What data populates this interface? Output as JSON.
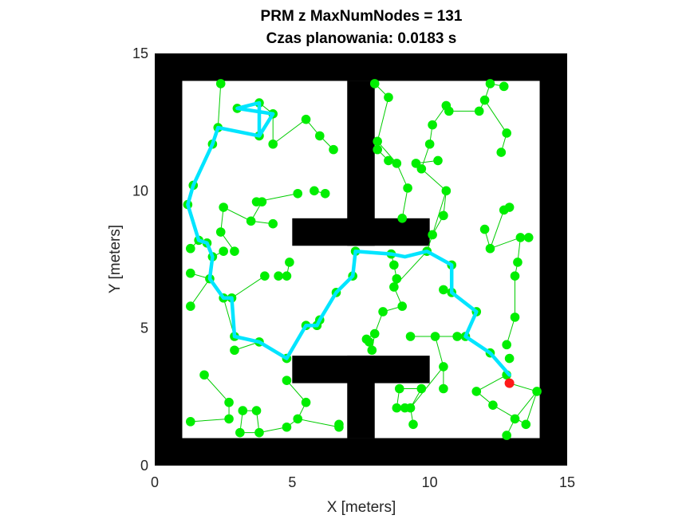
{
  "chart_data": {
    "type": "scatter",
    "title": "PRM z MaxNumNodes = 131",
    "subtitle": "Czas planowania: 0.0183 s",
    "xlabel": "X [meters]",
    "ylabel": "Y [meters]",
    "xlim": [
      0,
      15
    ],
    "ylim": [
      0,
      15
    ],
    "xticks": [
      "0",
      "5",
      "10",
      "15"
    ],
    "yticks": [
      "0",
      "5",
      "10",
      "15"
    ],
    "grid": false,
    "colors": {
      "obstacle": "#000000",
      "free": "#ffffff",
      "node": "#00ee00",
      "edge": "#00cc00",
      "path": "#00e5ff",
      "goal": "#ff1a1a"
    },
    "obstacles": [
      {
        "x": 0,
        "y": 0,
        "w": 15,
        "h": 1
      },
      {
        "x": 0,
        "y": 14,
        "w": 15,
        "h": 1
      },
      {
        "x": 0,
        "y": 0,
        "w": 1,
        "h": 15
      },
      {
        "x": 14,
        "y": 0,
        "w": 1,
        "h": 15
      },
      {
        "x": 7,
        "y": 1,
        "w": 1,
        "h": 3
      },
      {
        "x": 7,
        "y": 8,
        "w": 1,
        "h": 6
      },
      {
        "x": 5,
        "y": 8,
        "w": 5,
        "h": 1
      },
      {
        "x": 5,
        "y": 3,
        "w": 5,
        "h": 1
      }
    ],
    "nodes": [
      [
        2.4,
        13.9
      ],
      [
        3.0,
        13.0
      ],
      [
        3.8,
        13.2
      ],
      [
        4.3,
        12.8
      ],
      [
        3.8,
        12.0
      ],
      [
        4.3,
        11.7
      ],
      [
        2.3,
        12.3
      ],
      [
        2.1,
        11.7
      ],
      [
        5.5,
        12.6
      ],
      [
        6.0,
        12.0
      ],
      [
        6.5,
        11.5
      ],
      [
        1.4,
        10.2
      ],
      [
        1.2,
        9.5
      ],
      [
        2.5,
        9.4
      ],
      [
        3.7,
        9.6
      ],
      [
        3.9,
        9.6
      ],
      [
        5.2,
        9.9
      ],
      [
        5.8,
        10.0
      ],
      [
        6.2,
        9.9
      ],
      [
        3.5,
        8.9
      ],
      [
        4.3,
        8.8
      ],
      [
        2.4,
        8.5
      ],
      [
        1.6,
        8.2
      ],
      [
        1.9,
        8.1
      ],
      [
        1.3,
        7.9
      ],
      [
        2.5,
        7.8
      ],
      [
        2.9,
        7.8
      ],
      [
        2.1,
        7.6
      ],
      [
        4.0,
        6.9
      ],
      [
        4.5,
        6.9
      ],
      [
        4.8,
        6.9
      ],
      [
        4.9,
        7.4
      ],
      [
        1.3,
        7.0
      ],
      [
        2.0,
        6.8
      ],
      [
        2.5,
        6.1
      ],
      [
        2.8,
        6.1
      ],
      [
        1.3,
        5.8
      ],
      [
        2.9,
        4.7
      ],
      [
        3.8,
        4.5
      ],
      [
        2.9,
        4.2
      ],
      [
        4.8,
        3.9
      ],
      [
        5.5,
        5.1
      ],
      [
        5.9,
        5.1
      ],
      [
        6.0,
        5.3
      ],
      [
        6.6,
        6.3
      ],
      [
        7.2,
        6.9
      ],
      [
        7.3,
        7.8
      ],
      [
        8.6,
        7.7
      ],
      [
        8.7,
        7.3
      ],
      [
        8.8,
        6.8
      ],
      [
        8.7,
        6.5
      ],
      [
        9.0,
        5.8
      ],
      [
        9.9,
        7.8
      ],
      [
        10.1,
        8.4
      ],
      [
        10.8,
        7.3
      ],
      [
        10.5,
        6.4
      ],
      [
        10.8,
        6.3
      ],
      [
        11.7,
        5.6
      ],
      [
        11.3,
        4.7
      ],
      [
        12.2,
        4.1
      ],
      [
        12.9,
        3.9
      ],
      [
        12.8,
        3.3
      ],
      [
        12.9,
        3.0
      ],
      [
        8.0,
        13.9
      ],
      [
        8.5,
        13.4
      ],
      [
        8.1,
        11.8
      ],
      [
        8.1,
        11.5
      ],
      [
        8.5,
        11.1
      ],
      [
        8.8,
        11.0
      ],
      [
        9.2,
        10.1
      ],
      [
        9.5,
        11.0
      ],
      [
        10.1,
        12.4
      ],
      [
        10.0,
        11.7
      ],
      [
        9.7,
        10.8
      ],
      [
        10.3,
        11.1
      ],
      [
        10.6,
        10.0
      ],
      [
        10.5,
        9.1
      ],
      [
        9.0,
        9.0
      ],
      [
        10.6,
        13.1
      ],
      [
        10.7,
        12.9
      ],
      [
        11.8,
        12.9
      ],
      [
        12.0,
        13.3
      ],
      [
        12.2,
        13.9
      ],
      [
        12.7,
        13.8
      ],
      [
        12.8,
        12.1
      ],
      [
        12.6,
        11.4
      ],
      [
        12.7,
        9.3
      ],
      [
        12.9,
        9.4
      ],
      [
        12.0,
        8.6
      ],
      [
        12.2,
        7.9
      ],
      [
        13.3,
        8.3
      ],
      [
        13.6,
        8.3
      ],
      [
        13.2,
        7.4
      ],
      [
        13.1,
        6.9
      ],
      [
        13.1,
        5.4
      ],
      [
        12.8,
        4.4
      ],
      [
        7.7,
        4.6
      ],
      [
        7.9,
        4.2
      ],
      [
        7.8,
        4.5
      ],
      [
        8.0,
        4.8
      ],
      [
        8.3,
        5.6
      ],
      [
        9.3,
        4.7
      ],
      [
        10.2,
        4.7
      ],
      [
        11.0,
        4.7
      ],
      [
        8.9,
        2.8
      ],
      [
        9.3,
        2.1
      ],
      [
        9.7,
        2.8
      ],
      [
        9.4,
        1.5
      ],
      [
        10.5,
        3.6
      ],
      [
        10.5,
        2.8
      ],
      [
        8.8,
        2.1
      ],
      [
        9.1,
        2.1
      ],
      [
        11.7,
        2.7
      ],
      [
        12.3,
        2.2
      ],
      [
        12.8,
        1.1
      ],
      [
        13.1,
        1.7
      ],
      [
        13.9,
        2.7
      ],
      [
        13.5,
        1.5
      ],
      [
        1.8,
        3.3
      ],
      [
        2.7,
        2.3
      ],
      [
        2.7,
        1.7
      ],
      [
        3.2,
        2.0
      ],
      [
        3.7,
        2.0
      ],
      [
        1.3,
        1.6
      ],
      [
        3.1,
        1.2
      ],
      [
        3.8,
        1.2
      ],
      [
        4.8,
        1.4
      ],
      [
        5.2,
        1.7
      ],
      [
        4.8,
        3.1
      ],
      [
        6.7,
        1.4
      ],
      [
        6.7,
        1.5
      ],
      [
        5.5,
        2.3
      ]
    ],
    "edges": [
      [
        2.4,
        13.9,
        2.3,
        12.3
      ],
      [
        3.0,
        13.0,
        3.8,
        13.2
      ],
      [
        3.8,
        13.2,
        4.3,
        12.8
      ],
      [
        4.3,
        12.8,
        3.8,
        12.0
      ],
      [
        4.3,
        12.8,
        4.3,
        11.7
      ],
      [
        2.3,
        12.3,
        3.8,
        12.0
      ],
      [
        5.5,
        12.6,
        6.0,
        12.0
      ],
      [
        6.0,
        12.0,
        6.5,
        11.5
      ],
      [
        5.5,
        12.6,
        4.3,
        11.7
      ],
      [
        2.1,
        11.7,
        1.4,
        10.2
      ],
      [
        1.2,
        9.5,
        1.6,
        8.2
      ],
      [
        2.5,
        9.4,
        3.5,
        8.9
      ],
      [
        3.7,
        9.6,
        5.2,
        9.9
      ],
      [
        3.9,
        9.6,
        3.5,
        8.9
      ],
      [
        5.8,
        10.0,
        6.2,
        9.9
      ],
      [
        3.5,
        8.9,
        4.3,
        8.8
      ],
      [
        2.4,
        8.5,
        2.9,
        7.8
      ],
      [
        2.4,
        8.5,
        2.5,
        9.4
      ],
      [
        1.3,
        7.9,
        1.6,
        8.2
      ],
      [
        2.5,
        7.8,
        2.1,
        7.6
      ],
      [
        2.0,
        6.8,
        1.3,
        7.0
      ],
      [
        2.0,
        6.8,
        1.3,
        5.8
      ],
      [
        4.0,
        6.9,
        2.8,
        6.1
      ],
      [
        4.8,
        6.9,
        4.9,
        7.4
      ],
      [
        2.8,
        6.1,
        2.9,
        4.7
      ],
      [
        2.9,
        4.2,
        3.8,
        4.5
      ],
      [
        2.5,
        6.1,
        2.9,
        4.7
      ],
      [
        2.0,
        6.8,
        2.1,
        7.6
      ],
      [
        7.3,
        7.8,
        8.6,
        7.7
      ],
      [
        8.7,
        7.3,
        8.8,
        6.8
      ],
      [
        8.8,
        6.8,
        8.7,
        6.5
      ],
      [
        8.7,
        6.5,
        9.0,
        5.8
      ],
      [
        8.6,
        7.7,
        8.7,
        7.3
      ],
      [
        9.0,
        5.8,
        8.3,
        5.6
      ],
      [
        8.3,
        5.6,
        8.0,
        4.8
      ],
      [
        8.0,
        4.8,
        7.7,
        4.6
      ],
      [
        8.0,
        4.8,
        7.9,
        4.2
      ],
      [
        10.1,
        8.4,
        9.9,
        7.8
      ],
      [
        10.1,
        8.4,
        10.6,
        10.0
      ],
      [
        10.5,
        6.4,
        10.8,
        6.3
      ],
      [
        8.7,
        6.5,
        9.9,
        7.8
      ],
      [
        9.3,
        4.7,
        10.2,
        4.7
      ],
      [
        10.2,
        4.7,
        11.3,
        4.7
      ],
      [
        10.2,
        4.7,
        10.5,
        3.6
      ],
      [
        8.0,
        13.9,
        8.5,
        13.4
      ],
      [
        8.5,
        13.4,
        8.1,
        11.8
      ],
      [
        8.1,
        11.5,
        8.5,
        11.1
      ],
      [
        8.5,
        11.1,
        8.8,
        11.0
      ],
      [
        8.8,
        11.0,
        9.2,
        10.1
      ],
      [
        9.2,
        10.1,
        9.0,
        9.0
      ],
      [
        9.5,
        11.0,
        10.3,
        11.1
      ],
      [
        10.1,
        12.4,
        10.0,
        11.7
      ],
      [
        10.0,
        11.7,
        9.7,
        10.8
      ],
      [
        10.1,
        12.4,
        10.6,
        13.1
      ],
      [
        10.6,
        13.1,
        10.7,
        12.9
      ],
      [
        10.7,
        12.9,
        11.8,
        12.9
      ],
      [
        11.8,
        12.9,
        12.0,
        13.3
      ],
      [
        12.0,
        13.3,
        12.2,
        13.9
      ],
      [
        12.2,
        13.9,
        12.7,
        13.8
      ],
      [
        12.0,
        13.3,
        12.8,
        12.1
      ],
      [
        12.8,
        12.1,
        12.6,
        11.4
      ],
      [
        9.7,
        10.8,
        10.6,
        10.0
      ],
      [
        10.6,
        10.0,
        10.5,
        9.1
      ],
      [
        10.5,
        9.1,
        10.1,
        8.4
      ],
      [
        8.1,
        11.8,
        8.8,
        11.0
      ],
      [
        12.7,
        9.3,
        12.2,
        7.9
      ],
      [
        12.9,
        9.4,
        12.7,
        9.3
      ],
      [
        12.0,
        8.6,
        12.2,
        7.9
      ],
      [
        13.3,
        8.3,
        13.6,
        8.3
      ],
      [
        13.3,
        8.3,
        13.2,
        7.4
      ],
      [
        13.2,
        7.4,
        13.1,
        6.9
      ],
      [
        13.1,
        6.9,
        13.1,
        5.4
      ],
      [
        13.1,
        5.4,
        12.8,
        4.4
      ],
      [
        13.3,
        8.3,
        12.2,
        7.9
      ],
      [
        11.7,
        2.7,
        12.3,
        2.2
      ],
      [
        12.3,
        2.2,
        13.5,
        1.5
      ],
      [
        13.5,
        1.5,
        13.9,
        2.7
      ],
      [
        12.8,
        1.1,
        13.1,
        1.7
      ],
      [
        13.1,
        1.7,
        13.9,
        2.7
      ],
      [
        12.9,
        3.0,
        13.9,
        2.7
      ],
      [
        11.7,
        2.7,
        12.8,
        3.3
      ],
      [
        10.5,
        3.6,
        10.5,
        2.8
      ],
      [
        10.5,
        3.6,
        9.3,
        2.1
      ],
      [
        9.3,
        2.1,
        9.4,
        1.5
      ],
      [
        8.9,
        2.8,
        9.7,
        2.8
      ],
      [
        8.8,
        2.1,
        9.1,
        2.1
      ],
      [
        8.9,
        2.8,
        8.8,
        2.1
      ],
      [
        9.7,
        2.8,
        9.3,
        2.1
      ],
      [
        1.8,
        3.3,
        2.7,
        2.3
      ],
      [
        2.7,
        2.3,
        2.7,
        1.7
      ],
      [
        2.7,
        1.7,
        1.3,
        1.6
      ],
      [
        3.2,
        2.0,
        3.7,
        2.0
      ],
      [
        3.2,
        2.0,
        3.1,
        1.2
      ],
      [
        3.1,
        1.2,
        3.8,
        1.2
      ],
      [
        3.8,
        1.2,
        4.8,
        1.4
      ],
      [
        4.8,
        1.4,
        5.2,
        1.7
      ],
      [
        5.2,
        1.7,
        6.7,
        1.4
      ],
      [
        6.7,
        1.4,
        6.7,
        1.5
      ],
      [
        4.8,
        3.1,
        5.5,
        2.3
      ],
      [
        5.5,
        2.3,
        5.2,
        1.7
      ],
      [
        3.7,
        2.0,
        3.8,
        1.2
      ]
    ],
    "path": [
      [
        3.8,
        12.0
      ],
      [
        3.8,
        13.2
      ],
      [
        3.0,
        13.0
      ],
      [
        4.3,
        12.8
      ],
      [
        3.8,
        12.0
      ],
      [
        2.3,
        12.3
      ],
      [
        2.1,
        11.7
      ],
      [
        1.4,
        10.2
      ],
      [
        1.2,
        9.5
      ],
      [
        1.6,
        8.2
      ],
      [
        1.9,
        8.1
      ],
      [
        2.1,
        7.6
      ],
      [
        2.0,
        6.8
      ],
      [
        2.5,
        6.1
      ],
      [
        2.8,
        6.1
      ],
      [
        2.9,
        4.7
      ],
      [
        3.8,
        4.5
      ],
      [
        4.8,
        3.9
      ],
      [
        5.5,
        5.1
      ],
      [
        5.9,
        5.1
      ],
      [
        6.0,
        5.3
      ],
      [
        6.6,
        6.3
      ],
      [
        7.2,
        6.9
      ],
      [
        7.3,
        7.8
      ],
      [
        8.6,
        7.7
      ],
      [
        9.1,
        7.6
      ],
      [
        9.9,
        7.8
      ],
      [
        10.8,
        7.3
      ],
      [
        10.8,
        6.3
      ],
      [
        11.7,
        5.6
      ],
      [
        11.3,
        4.7
      ],
      [
        12.2,
        4.1
      ],
      [
        12.9,
        3.3
      ]
    ],
    "goal": [
      12.9,
      3.0
    ]
  }
}
